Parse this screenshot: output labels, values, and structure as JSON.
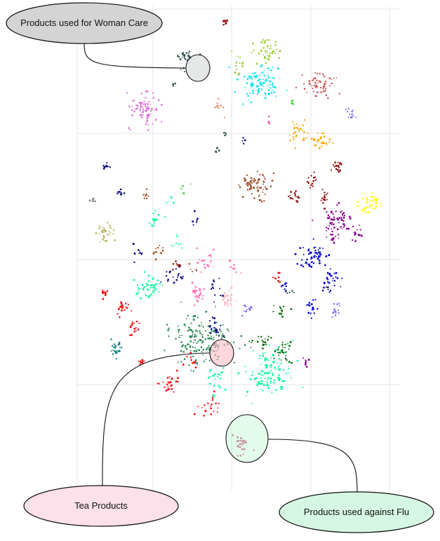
{
  "chart_data": {
    "type": "scatter",
    "title": "",
    "xlabel": "",
    "ylabel": "",
    "xlim": [
      0,
      100
    ],
    "ylim": [
      0,
      100
    ],
    "grid": true,
    "legend": "none",
    "clusters": [
      {
        "color": "#8b0000",
        "x": 46,
        "y": 96.6,
        "sx": 0.4,
        "sy": 0.4,
        "n": 8
      },
      {
        "color": "#9acd32",
        "x": 59,
        "y": 89,
        "sx": 2.2,
        "sy": 2.0,
        "n": 45
      },
      {
        "color": "#9acd32",
        "x": 50,
        "y": 85,
        "sx": 1.0,
        "sy": 1.5,
        "n": 15
      },
      {
        "color": "#00e5ee",
        "x": 57,
        "y": 80,
        "sx": 3.5,
        "sy": 2.4,
        "n": 90
      },
      {
        "color": "#cd5c5c",
        "x": 75,
        "y": 80,
        "sx": 2.6,
        "sy": 1.5,
        "n": 55
      },
      {
        "color": "#2f4f4f",
        "x": 34,
        "y": 87.5,
        "sx": 1.2,
        "sy": 0.6,
        "n": 22
      },
      {
        "color": "#2f4f4f",
        "x": 30,
        "y": 80,
        "sx": 0.4,
        "sy": 0.4,
        "n": 4
      },
      {
        "color": "#2f4f4f",
        "x": 33,
        "y": 84,
        "sx": 0.4,
        "sy": 0.4,
        "n": 3
      },
      {
        "color": "#da70d6",
        "x": 21,
        "y": 73,
        "sx": 2.3,
        "sy": 2.4,
        "n": 85
      },
      {
        "color": "#e9967a",
        "x": 44,
        "y": 74,
        "sx": 1.2,
        "sy": 1.2,
        "n": 10
      },
      {
        "color": "#ffa500",
        "x": 69,
        "y": 67,
        "sx": 1.6,
        "sy": 1.6,
        "n": 30
      },
      {
        "color": "#ffa500",
        "x": 76,
        "y": 65,
        "sx": 1.6,
        "sy": 1.2,
        "n": 28
      },
      {
        "color": "#7b68ee",
        "x": 85,
        "y": 72,
        "sx": 0.7,
        "sy": 0.7,
        "n": 12
      },
      {
        "color": "#a0522d",
        "x": 56,
        "y": 53,
        "sx": 2.2,
        "sy": 1.7,
        "n": 70
      },
      {
        "color": "#8b0000",
        "x": 81,
        "y": 58,
        "sx": 0.8,
        "sy": 1.0,
        "n": 18
      },
      {
        "color": "#8b0000",
        "x": 73,
        "y": 54,
        "sx": 1.2,
        "sy": 1.0,
        "n": 15
      },
      {
        "color": "#8b0000",
        "x": 68,
        "y": 50,
        "sx": 1.0,
        "sy": 1.0,
        "n": 18
      },
      {
        "color": "#8b0000",
        "x": 77,
        "y": 50,
        "sx": 0.8,
        "sy": 1.2,
        "n": 15
      },
      {
        "color": "#ffff00",
        "x": 91,
        "y": 48,
        "sx": 1.8,
        "sy": 1.4,
        "n": 45
      },
      {
        "color": "#8b008b",
        "x": 81,
        "y": 44,
        "sx": 2.4,
        "sy": 1.8,
        "n": 55
      },
      {
        "color": "#8b008b",
        "x": 87,
        "y": 40,
        "sx": 1.0,
        "sy": 1.2,
        "n": 15
      },
      {
        "color": "#8b008b",
        "x": 79,
        "y": 39,
        "sx": 1.2,
        "sy": 1.0,
        "n": 15
      },
      {
        "color": "#0000cd",
        "x": 73,
        "y": 34,
        "sx": 2.2,
        "sy": 1.6,
        "n": 55
      },
      {
        "color": "#0000cd",
        "x": 79,
        "y": 28,
        "sx": 1.5,
        "sy": 1.4,
        "n": 25
      },
      {
        "color": "#0000cd",
        "x": 73,
        "y": 20,
        "sx": 1.0,
        "sy": 1.0,
        "n": 15
      },
      {
        "color": "#0000cd",
        "x": 64,
        "y": 26,
        "sx": 1.0,
        "sy": 1.0,
        "n": 10
      },
      {
        "color": "#7b68ee",
        "x": 81,
        "y": 20,
        "sx": 1.0,
        "sy": 1.0,
        "n": 14
      },
      {
        "color": "#000080",
        "x": 9,
        "y": 58,
        "sx": 0.5,
        "sy": 0.7,
        "n": 10
      },
      {
        "color": "#000080",
        "x": 14,
        "y": 51,
        "sx": 0.6,
        "sy": 0.6,
        "n": 10
      },
      {
        "color": "#808080",
        "x": 5,
        "y": 49,
        "sx": 0.4,
        "sy": 0.5,
        "n": 6
      },
      {
        "color": "#a0522d",
        "x": 21,
        "y": 50,
        "sx": 0.7,
        "sy": 0.7,
        "n": 8
      },
      {
        "color": "#bdb76b",
        "x": 9,
        "y": 40,
        "sx": 1.4,
        "sy": 1.2,
        "n": 30
      },
      {
        "color": "#00fa9a",
        "x": 24,
        "y": 44,
        "sx": 1.0,
        "sy": 1.2,
        "n": 14
      },
      {
        "color": "#a0522d",
        "x": 25,
        "y": 36,
        "sx": 1.0,
        "sy": 1.2,
        "n": 12
      },
      {
        "color": "#000080",
        "x": 19,
        "y": 35,
        "sx": 1.0,
        "sy": 1.0,
        "n": 10
      },
      {
        "color": "#ff69b4",
        "x": 40,
        "y": 33,
        "sx": 1.6,
        "sy": 1.5,
        "n": 18
      },
      {
        "color": "#000080",
        "x": 30,
        "y": 29,
        "sx": 1.5,
        "sy": 1.4,
        "n": 18
      },
      {
        "color": "#00fa9a",
        "x": 22,
        "y": 26,
        "sx": 2.0,
        "sy": 2.4,
        "n": 45
      },
      {
        "color": "#ff0000",
        "x": 8,
        "y": 24,
        "sx": 0.6,
        "sy": 0.6,
        "n": 10
      },
      {
        "color": "#ff0000",
        "x": 14,
        "y": 20,
        "sx": 1.0,
        "sy": 1.2,
        "n": 20
      },
      {
        "color": "#ff0000",
        "x": 18,
        "y": 15,
        "sx": 1.0,
        "sy": 1.0,
        "n": 14
      },
      {
        "color": "#ff69b4",
        "x": 37,
        "y": 24,
        "sx": 1.2,
        "sy": 1.2,
        "n": 30
      },
      {
        "color": "#ffb6c1",
        "x": 47,
        "y": 23,
        "sx": 1.5,
        "sy": 1.5,
        "n": 30
      },
      {
        "color": "#7b68ee",
        "x": 53,
        "y": 20,
        "sx": 1.0,
        "sy": 0.7,
        "n": 12
      },
      {
        "color": "#000080",
        "x": 43,
        "y": 26,
        "sx": 1.2,
        "sy": 1.2,
        "n": 12
      },
      {
        "color": "#2e8b57",
        "x": 38,
        "y": 12,
        "sx": 5.0,
        "sy": 3.5,
        "n": 170
      },
      {
        "color": "#000080",
        "x": 43,
        "y": 15,
        "sx": 1.5,
        "sy": 1.2,
        "n": 20
      },
      {
        "color": "#008080",
        "x": 12,
        "y": 9,
        "sx": 1.0,
        "sy": 1.4,
        "n": 25
      },
      {
        "color": "#ff0000",
        "x": 20,
        "y": 6,
        "sx": 0.6,
        "sy": 0.5,
        "n": 10
      },
      {
        "color": "#ff0000",
        "x": 29,
        "y": 0,
        "sx": 1.5,
        "sy": 1.5,
        "n": 25
      },
      {
        "color": "#ff0000",
        "x": 41,
        "y": -6,
        "sx": 1.6,
        "sy": 1.4,
        "n": 20
      },
      {
        "color": "#00fa9a",
        "x": 60,
        "y": 3,
        "sx": 3.5,
        "sy": 3.0,
        "n": 120
      },
      {
        "color": "#006400",
        "x": 64,
        "y": 9,
        "sx": 2.0,
        "sy": 1.5,
        "n": 25
      },
      {
        "color": "#006400",
        "x": 57,
        "y": 12,
        "sx": 2.0,
        "sy": 1.2,
        "n": 20
      },
      {
        "color": "#800080",
        "x": 71,
        "y": 6,
        "sx": 0.6,
        "sy": 0.6,
        "n": 8
      },
      {
        "color": "#db7093",
        "x": 51,
        "y": -16,
        "sx": 1.2,
        "sy": 1.5,
        "n": 30
      },
      {
        "color": "#00fa9a",
        "x": 44,
        "y": 1,
        "sx": 2.0,
        "sy": 2.0,
        "n": 25
      },
      {
        "color": "#ff0000",
        "x": 62,
        "y": 28,
        "sx": 1.0,
        "sy": 1.0,
        "n": 8
      },
      {
        "color": "#006400",
        "x": 63,
        "y": 20,
        "sx": 1.0,
        "sy": 1.0,
        "n": 12
      },
      {
        "color": "#00fa9a",
        "x": 29,
        "y": 49,
        "sx": 0.8,
        "sy": 0.8,
        "n": 6
      },
      {
        "color": "#00fa9a",
        "x": 31,
        "y": 38,
        "sx": 1.0,
        "sy": 1.0,
        "n": 8
      },
      {
        "color": "#2f4f4f",
        "x": 43,
        "y": 62,
        "sx": 0.5,
        "sy": 0.5,
        "n": 4
      },
      {
        "color": "#2f4f4f",
        "x": 46,
        "y": 67,
        "sx": 0.5,
        "sy": 0.5,
        "n": 4
      },
      {
        "color": "#2f4f4f",
        "x": 66,
        "y": 25,
        "sx": 0.6,
        "sy": 0.6,
        "n": 5
      },
      {
        "color": "#ff69b4",
        "x": 50,
        "y": 31,
        "sx": 1.2,
        "sy": 1.0,
        "n": 8
      },
      {
        "color": "#8b0000",
        "x": 31,
        "y": 32,
        "sx": 0.8,
        "sy": 0.8,
        "n": 8
      },
      {
        "color": "#ff0000",
        "x": 35,
        "y": 6,
        "sx": 1.0,
        "sy": 1.0,
        "n": 10
      },
      {
        "color": "#a0522d",
        "x": 36,
        "y": 31,
        "sx": 0.6,
        "sy": 0.6,
        "n": 5
      },
      {
        "color": "#32cd32",
        "x": 33,
        "y": 52,
        "sx": 1.0,
        "sy": 1.0,
        "n": 4
      },
      {
        "color": "#000080",
        "x": 37,
        "y": 44,
        "sx": 1.0,
        "sy": 1.0,
        "n": 6
      },
      {
        "color": "#000080",
        "x": 52,
        "y": 65,
        "sx": 0.6,
        "sy": 0.6,
        "n": 4
      },
      {
        "color": "#ff1493",
        "x": 60,
        "y": 70,
        "sx": 0.6,
        "sy": 0.6,
        "n": 3
      },
      {
        "color": "#32cd32",
        "x": 67,
        "y": 75,
        "sx": 0.6,
        "sy": 0.6,
        "n": 4
      },
      {
        "color": "#000080",
        "x": 77,
        "y": 25,
        "sx": 0.7,
        "sy": 0.7,
        "n": 6
      }
    ]
  },
  "annotations": [
    {
      "label": "Products used for Woman Care"
    },
    {
      "label": "Tea Products"
    },
    {
      "label": "Products used against Flu"
    }
  ]
}
